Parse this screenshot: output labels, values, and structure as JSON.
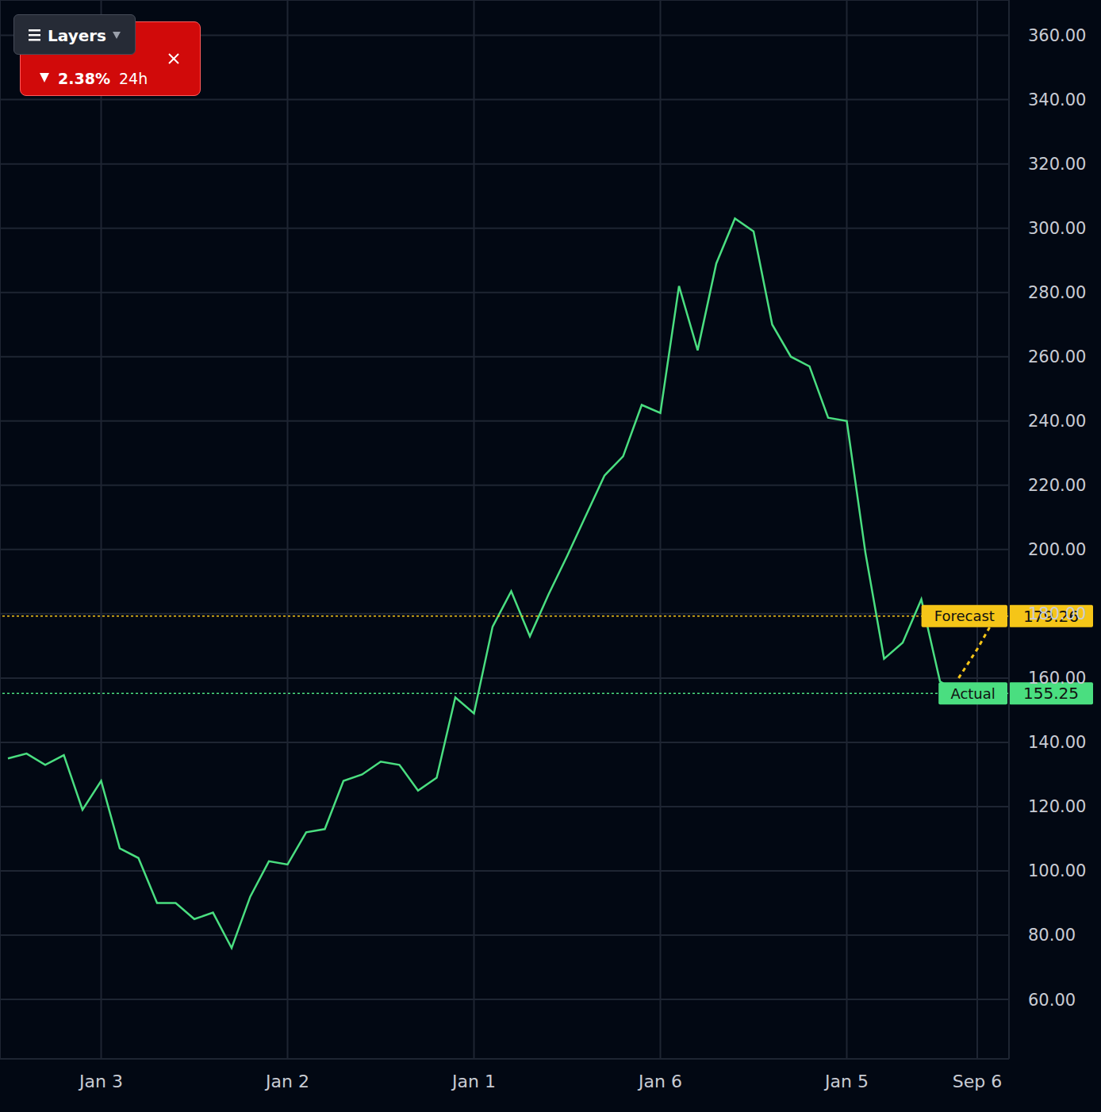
{
  "chart_data": {
    "type": "line",
    "categories": [
      null,
      null,
      null,
      null,
      null,
      "Jan 3",
      null,
      null,
      null,
      null,
      null,
      null,
      null,
      null,
      null,
      "Jan 2",
      null,
      null,
      null,
      null,
      null,
      null,
      null,
      null,
      null,
      "Jan 1",
      null,
      null,
      null,
      null,
      null,
      null,
      null,
      null,
      null,
      "Jan 6",
      null,
      null,
      null,
      null,
      null,
      null,
      null,
      null,
      null,
      "Jan 5",
      null,
      null,
      null,
      null,
      null,
      null,
      "Sep 6",
      null
    ],
    "series": [
      {
        "name": "Actual",
        "color": "#4ade80",
        "line_style": "solid",
        "values": [
          135,
          136.5,
          133,
          136,
          119,
          128,
          107,
          104,
          90,
          90,
          85,
          87,
          76,
          92,
          103,
          102,
          112,
          113,
          128,
          130,
          134,
          133,
          125,
          129,
          154,
          149,
          176,
          187,
          173,
          186,
          198,
          210.5,
          223,
          229,
          245,
          242.5,
          282,
          262,
          289,
          303,
          299,
          270,
          260,
          257,
          241,
          240,
          199,
          166,
          171,
          184.5,
          159,
          155.25,
          null,
          null
        ]
      },
      {
        "name": "Forecast",
        "color": "#f5c518",
        "line_style": "dotted",
        "values": [
          null,
          null,
          null,
          null,
          null,
          null,
          null,
          null,
          null,
          null,
          null,
          null,
          null,
          null,
          null,
          null,
          null,
          null,
          null,
          null,
          null,
          null,
          null,
          null,
          null,
          null,
          null,
          null,
          null,
          null,
          null,
          null,
          null,
          null,
          null,
          null,
          null,
          null,
          null,
          null,
          null,
          null,
          null,
          null,
          null,
          null,
          null,
          null,
          null,
          null,
          null,
          160,
          169,
          179.26
        ]
      }
    ],
    "ylim": [
      41.5,
      371
    ],
    "yticks": [
      {
        "value": 60,
        "label": "60.00"
      },
      {
        "value": 80,
        "label": "80.00"
      },
      {
        "value": 100,
        "label": "100.00"
      },
      {
        "value": 120,
        "label": "120.00"
      },
      {
        "value": 140,
        "label": "140.00"
      },
      {
        "value": 160,
        "label": "160.00"
      },
      {
        "value": 180,
        "label": "180.00"
      },
      {
        "value": 200,
        "label": "200.00"
      },
      {
        "value": 220,
        "label": "220.00"
      },
      {
        "value": 240,
        "label": "240.00"
      },
      {
        "value": 260,
        "label": "260.00"
      },
      {
        "value": 280,
        "label": "280.00"
      },
      {
        "value": 300,
        "label": "300.00"
      },
      {
        "value": 320,
        "label": "320.00"
      },
      {
        "value": 340,
        "label": "340.00"
      },
      {
        "value": 360,
        "label": "360.00"
      }
    ],
    "grid": true,
    "badge": {
      "change": "2.38%",
      "period": "24h",
      "button": "Layers"
    }
  }
}
